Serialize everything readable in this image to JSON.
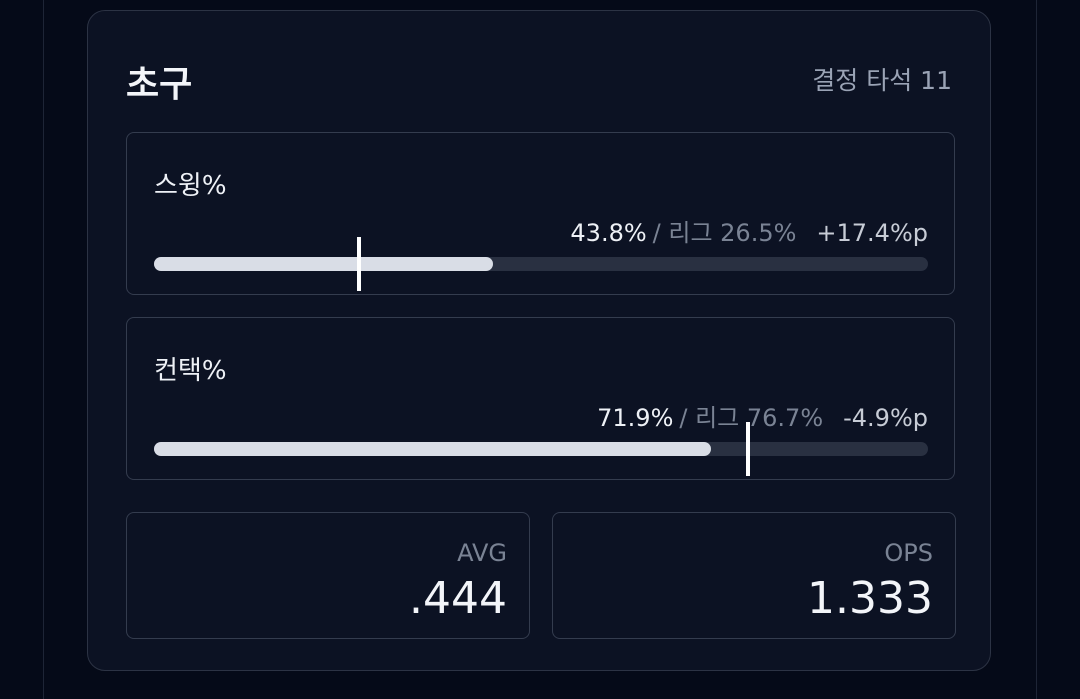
{
  "header": {
    "title": "초구",
    "subtitle": "결정 타석 11"
  },
  "metrics": {
    "xlim": [
      0,
      100
    ],
    "items": [
      {
        "label": "스윙%",
        "value": 43.8,
        "value_label": "43.8%",
        "league": 26.5,
        "league_label": "/ 리그 26.5%",
        "diff": "+17.4%p"
      },
      {
        "label": "컨택%",
        "value": 71.9,
        "value_label": "71.9%",
        "league": 76.7,
        "league_label": "/ 리그 76.7%",
        "diff": "-4.9%p"
      }
    ]
  },
  "stats": [
    {
      "label": "AVG",
      "value": ".444"
    },
    {
      "label": "OPS",
      "value": "1.333"
    }
  ]
}
